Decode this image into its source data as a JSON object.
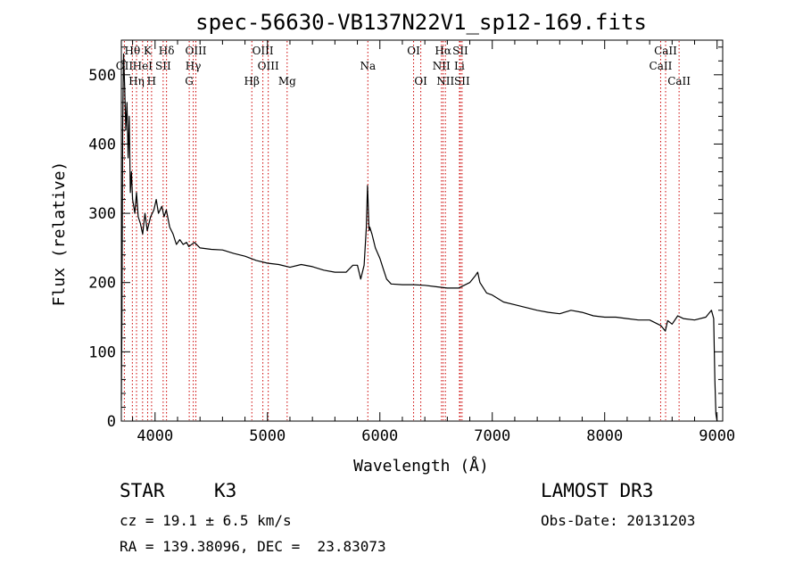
{
  "chart_data": {
    "type": "line",
    "title": "spec-56630-VB137N22V1_sp12-169.fits",
    "xlabel": "Wavelength (Å)",
    "ylabel": "Flux (relative)",
    "xlim": [
      3700,
      9050
    ],
    "ylim": [
      0,
      550
    ],
    "xticks": [
      4000,
      5000,
      6000,
      7000,
      8000,
      9000
    ],
    "yticks": [
      0,
      100,
      200,
      300,
      400,
      500
    ],
    "xtick_labels": [
      "4000",
      "5000",
      "6000",
      "7000",
      "8000",
      "9000"
    ],
    "ytick_labels": [
      "0",
      "100",
      "200",
      "300",
      "400",
      "500"
    ],
    "series": [
      {
        "name": "spectrum",
        "color": "#000000",
        "x": [
          3700,
          3705,
          3712,
          3720,
          3730,
          3740,
          3750,
          3760,
          3770,
          3780,
          3790,
          3800,
          3810,
          3820,
          3835,
          3850,
          3870,
          3890,
          3910,
          3930,
          3960,
          3990,
          4010,
          4030,
          4060,
          4080,
          4100,
          4130,
          4160,
          4190,
          4220,
          4250,
          4280,
          4300,
          4350,
          4400,
          4500,
          4600,
          4700,
          4800,
          4900,
          5000,
          5100,
          5200,
          5300,
          5400,
          5500,
          5600,
          5700,
          5760,
          5800,
          5830,
          5860,
          5880,
          5890,
          5895,
          5900,
          5905,
          5910,
          5930,
          5960,
          6000,
          6030,
          6060,
          6100,
          6200,
          6300,
          6400,
          6500,
          6600,
          6700,
          6800,
          6850,
          6870,
          6890,
          6950,
          7000,
          7100,
          7200,
          7300,
          7400,
          7500,
          7600,
          7700,
          7800,
          7900,
          8000,
          8100,
          8200,
          8300,
          8400,
          8500,
          8540,
          8560,
          8600,
          8650,
          8700,
          8800,
          8900,
          8950,
          8970,
          8980,
          8990,
          9000
        ],
        "y": [
          30,
          140,
          420,
          530,
          480,
          420,
          460,
          380,
          440,
          330,
          360,
          320,
          310,
          300,
          330,
          295,
          285,
          270,
          300,
          275,
          295,
          305,
          320,
          300,
          310,
          295,
          305,
          280,
          270,
          255,
          262,
          255,
          258,
          252,
          258,
          250,
          248,
          247,
          242,
          238,
          232,
          228,
          226,
          222,
          226,
          223,
          218,
          215,
          215,
          225,
          225,
          205,
          225,
          280,
          340,
          320,
          290,
          275,
          280,
          270,
          250,
          235,
          220,
          205,
          198,
          197,
          197,
          196,
          194,
          192,
          192,
          200,
          210,
          215,
          200,
          185,
          182,
          172,
          168,
          164,
          160,
          157,
          155,
          160,
          157,
          152,
          150,
          150,
          148,
          146,
          146,
          138,
          130,
          145,
          140,
          152,
          148,
          146,
          150,
          160,
          148,
          60,
          10,
          0
        ]
      }
    ],
    "line_color": "#cc0000",
    "line_style": "dotted",
    "spectral_lines_top": [
      {
        "label": "Hθ",
        "wavelength": 3798
      },
      {
        "label": "K",
        "wavelength": 3934
      },
      {
        "label": "Hδ",
        "wavelength": 4102
      },
      {
        "label": "OIII",
        "wavelength": 4363
      },
      {
        "label": "OIII",
        "wavelength": 4959
      },
      {
        "label": "OI",
        "wavelength": 6300
      },
      {
        "label": "Hα",
        "wavelength": 6563
      },
      {
        "label": "SII",
        "wavelength": 6716
      },
      {
        "label": "CaII",
        "wavelength": 8542
      }
    ],
    "spectral_lines_mid": [
      {
        "label": "OII",
        "wavelength": 3727
      },
      {
        "label": "HeI",
        "wavelength": 3889
      },
      {
        "label": "SII",
        "wavelength": 4072
      },
      {
        "label": "Hγ",
        "wavelength": 4340
      },
      {
        "label": "OIII",
        "wavelength": 5007
      },
      {
        "label": "Na",
        "wavelength": 5893
      },
      {
        "label": "NII",
        "wavelength": 6548
      },
      {
        "label": "Li",
        "wavelength": 6708
      },
      {
        "label": "CaII",
        "wavelength": 8498
      }
    ],
    "spectral_lines_bottom": [
      {
        "label": "Hη",
        "wavelength": 3835
      },
      {
        "label": "H",
        "wavelength": 3969
      },
      {
        "label": "G",
        "wavelength": 4304
      },
      {
        "label": "Hβ",
        "wavelength": 4861
      },
      {
        "label": "Mg",
        "wavelength": 5175
      },
      {
        "label": "OI",
        "wavelength": 6364
      },
      {
        "label": "NII",
        "wavelength": 6583
      },
      {
        "label": "SII",
        "wavelength": 6731
      },
      {
        "label": "CaII",
        "wavelength": 8662
      }
    ]
  },
  "info": {
    "object_class": "STAR",
    "subclass": "K3",
    "survey": "LAMOST DR3",
    "redshift": "cz = 19.1 ± 6.5 km/s",
    "obs_date": "Obs-Date: 20131203",
    "coordinates": "RA = 139.38096, DEC =  23.83073"
  }
}
